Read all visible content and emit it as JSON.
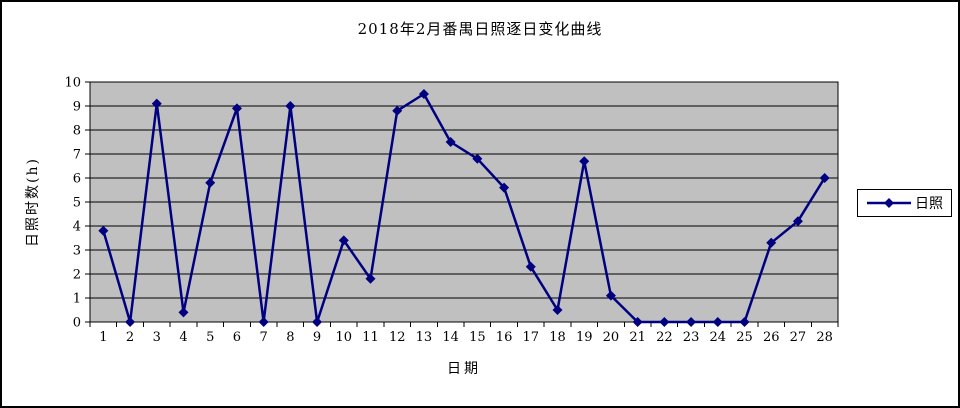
{
  "window": {
    "background": "#FFFFFF",
    "border_color": "#000000"
  },
  "chart_data": {
    "type": "line",
    "title": "2018年2月番禺日照逐日变化曲线",
    "xlabel": "日期",
    "ylabel": "日照时数(h)",
    "categories": [
      "1",
      "2",
      "3",
      "4",
      "5",
      "6",
      "7",
      "8",
      "9",
      "10",
      "11",
      "12",
      "13",
      "14",
      "15",
      "16",
      "17",
      "18",
      "19",
      "20",
      "21",
      "22",
      "23",
      "24",
      "25",
      "26",
      "27",
      "28"
    ],
    "series": [
      {
        "name": "日照",
        "marker": "diamond",
        "values": [
          3.8,
          0,
          9.1,
          0.4,
          5.8,
          8.9,
          0,
          9.0,
          0,
          3.4,
          1.8,
          8.8,
          9.5,
          7.5,
          6.8,
          5.6,
          2.3,
          0.5,
          6.7,
          1.1,
          0,
          0,
          0,
          0,
          0,
          3.3,
          4.2,
          6.0
        ]
      }
    ],
    "ylim": [
      0,
      10
    ],
    "ytick_step": 1,
    "grid": "horizontal",
    "legend_position": "right",
    "colors": {
      "series": "#000080",
      "plot_bg": "#C0C0C0",
      "axis": "#000000",
      "grid": "#000000",
      "legend_bg": "#FFFFFF",
      "text": "#000000"
    }
  }
}
